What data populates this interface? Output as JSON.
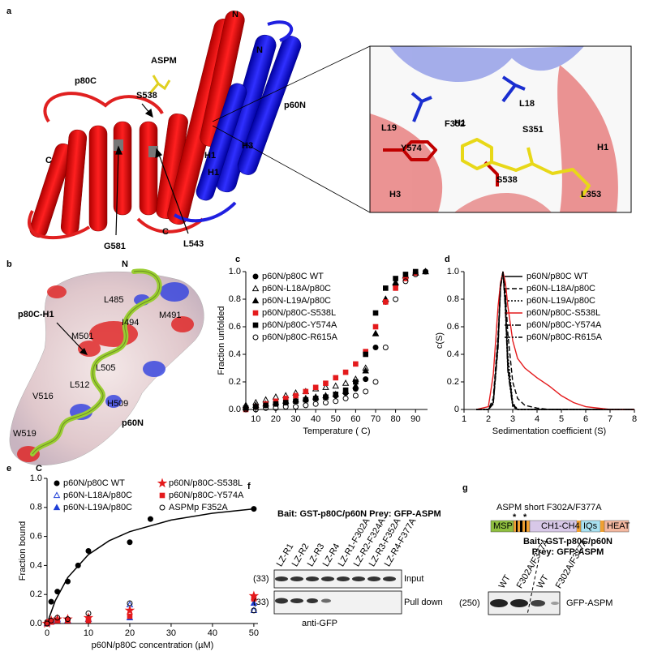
{
  "panel_labels": [
    "a",
    "b",
    "c",
    "d",
    "e",
    "f",
    "g"
  ],
  "panel_a": {
    "labels": [
      "p80C",
      "ASPM",
      "S538",
      "N",
      "N",
      "H1",
      "H1",
      "H3",
      "p60N",
      "C",
      "C",
      "G581",
      "L543"
    ],
    "inset_labels": [
      "L19",
      "H1",
      "L18",
      "F352",
      "S351",
      "Y574",
      "S538",
      "H3",
      "H1",
      "L353"
    ]
  },
  "panel_b": {
    "labels": [
      "p80C-H1",
      "N",
      "L485",
      "M491",
      "I494",
      "M501",
      "L505",
      "L512",
      "V516",
      "H509",
      "W519",
      "p60N",
      "C"
    ]
  },
  "chart_data": [
    {
      "type": "scatter",
      "ylabel": "Fraction unfolded",
      "xlabel": "Temperature ( C)",
      "x": [
        5,
        10,
        15,
        20,
        25,
        30,
        35,
        40,
        45,
        50,
        55,
        60,
        65,
        70,
        75,
        80,
        85,
        90,
        95
      ],
      "xlim": [
        5,
        96
      ],
      "xticks": [
        10,
        20,
        30,
        40,
        50,
        60,
        70,
        80,
        90
      ],
      "ylim": [
        0,
        1
      ],
      "yticks": [
        {
          "value": 0,
          "label": "0.0"
        },
        0.2,
        0.4,
        0.6,
        0.8,
        {
          "value": 1,
          "label": "1.0"
        }
      ],
      "legend": "upper left",
      "series": [
        {
          "name": "p60N/p80C WT",
          "color": "#000000",
          "marker": "circle",
          "values": [
            0.01,
            0.02,
            0.03,
            0.04,
            0.05,
            0.06,
            0.07,
            0.08,
            0.09,
            0.1,
            0.12,
            0.15,
            0.22,
            0.45,
            0.78,
            0.9,
            0.96,
            0.99,
            1.0
          ]
        },
        {
          "name": "p60N-L18A/p80C",
          "color": "#000000",
          "marker": "open-triangle",
          "values": [
            0.03,
            0.05,
            0.07,
            0.09,
            0.1,
            0.12,
            0.13,
            0.15,
            0.16,
            0.17,
            0.19,
            0.22,
            0.3,
            0.55,
            0.8,
            0.92,
            0.97,
            0.99,
            1.0
          ]
        },
        {
          "name": "p60N-L19A/p80C",
          "color": "#000000",
          "marker": "triangle",
          "values": [
            0.02,
            0.03,
            0.04,
            0.05,
            0.06,
            0.07,
            0.08,
            0.09,
            0.1,
            0.11,
            0.13,
            0.17,
            0.28,
            0.55,
            0.8,
            0.92,
            0.97,
            0.99,
            1.0
          ]
        },
        {
          "name": "p60N/p80C-S538L",
          "color": "#e41a1c",
          "marker": "square",
          "values": [
            0.0,
            0.02,
            0.04,
            0.06,
            0.08,
            0.1,
            0.13,
            0.16,
            0.19,
            0.23,
            0.27,
            0.33,
            0.42,
            0.6,
            0.78,
            0.88,
            0.95,
            0.99,
            null
          ]
        },
        {
          "name": "p60N/p80C-Y574A",
          "color": "#000000",
          "marker": "square",
          "values": [
            0.01,
            0.02,
            0.03,
            0.04,
            0.05,
            0.06,
            0.07,
            0.08,
            0.09,
            0.11,
            0.14,
            0.2,
            0.4,
            0.7,
            0.88,
            0.95,
            0.98,
            1.0,
            null
          ]
        },
        {
          "name": "p60N/p80C-R615A",
          "color": "#000000",
          "marker": "open-circle",
          "values": [
            0.0,
            0.0,
            0.01,
            0.01,
            0.02,
            0.02,
            0.03,
            0.04,
            0.05,
            0.06,
            0.08,
            0.1,
            0.13,
            0.2,
            0.45,
            0.8,
            0.93,
            0.98,
            1.0
          ]
        }
      ]
    },
    {
      "type": "line",
      "ylabel": "c(S)",
      "xlabel": "Sedimentation coefficient (S)",
      "x": [
        1.5,
        2.0,
        2.2,
        2.4,
        2.5,
        2.6,
        2.7,
        2.8,
        3.0,
        3.2,
        3.5,
        4.0,
        4.5,
        5.0,
        5.5,
        6.0,
        7.0,
        8.0
      ],
      "xlim": [
        1,
        8
      ],
      "xticks": [
        1,
        2,
        3,
        4,
        5,
        6,
        7,
        8
      ],
      "ylim": [
        0,
        1
      ],
      "yticks": [
        0,
        0.2,
        0.4,
        0.6,
        0.8,
        {
          "value": 1,
          "label": "1.0"
        }
      ],
      "legend": "upper right",
      "series": [
        {
          "name": "p60N/p80C WT",
          "color": "#000000",
          "dash": "none",
          "values": [
            0,
            0,
            0.05,
            0.5,
            0.9,
            1.0,
            0.75,
            0.3,
            0.03,
            0,
            0,
            0,
            0,
            0,
            0,
            0,
            0,
            0
          ]
        },
        {
          "name": "p60N-L18A/p80C",
          "color": "#000000",
          "dash": "6 3",
          "values": [
            0,
            0,
            0.08,
            0.55,
            0.9,
            1.0,
            0.85,
            0.55,
            0.2,
            0.08,
            0.03,
            0.01,
            0,
            0,
            0,
            0,
            0,
            0
          ]
        },
        {
          "name": "p60N-L19A/p80C",
          "color": "#000000",
          "dash": "2 2",
          "values": [
            0,
            0,
            0.05,
            0.5,
            0.88,
            1.0,
            0.8,
            0.4,
            0.05,
            0,
            0,
            0,
            0,
            0,
            0,
            0,
            0,
            0
          ]
        },
        {
          "name": "p60N/p80C-S538L",
          "color": "#e41a1c",
          "dash": "none",
          "values": [
            0,
            0.02,
            0.25,
            0.75,
            0.92,
            1.0,
            0.92,
            0.75,
            0.5,
            0.37,
            0.3,
            0.23,
            0.17,
            0.1,
            0.05,
            0.02,
            0,
            0
          ]
        },
        {
          "name": "p60N/p80C-Y574A",
          "color": "#000000",
          "dash": "7 2 2 2",
          "values": [
            0,
            0,
            0.04,
            0.45,
            0.88,
            1.0,
            0.78,
            0.35,
            0.04,
            0,
            0,
            0,
            0,
            0,
            0,
            0,
            0,
            0
          ]
        },
        {
          "name": "p60N/p80C-R615A",
          "color": "#000000",
          "dash": "7 2 2 2 2 2",
          "values": [
            0,
            0,
            0.04,
            0.48,
            0.9,
            1.0,
            0.72,
            0.28,
            0.02,
            0,
            0,
            0,
            0,
            0,
            0,
            0,
            0,
            0
          ]
        }
      ]
    },
    {
      "type": "scatter",
      "ylabel": "Fraction bound",
      "xlabel": "p60N/p80C concentration (µM)",
      "x": [
        0,
        1,
        2.5,
        5,
        7.5,
        10,
        20,
        25,
        50
      ],
      "xlim": [
        0,
        51
      ],
      "xticks": [
        0,
        10,
        20,
        30,
        40,
        50
      ],
      "ylim": [
        0,
        1
      ],
      "yticks": [
        {
          "value": 0,
          "label": "0.0"
        },
        0.2,
        0.4,
        0.6,
        0.8,
        {
          "value": 1,
          "label": "1.0"
        }
      ],
      "legend": "upper left",
      "legend_columns": 2,
      "fit": {
        "x": [
          0,
          2,
          5,
          10,
          15,
          20,
          30,
          40,
          50
        ],
        "values": [
          0,
          0.158,
          0.317,
          0.475,
          0.57,
          0.633,
          0.713,
          0.76,
          0.79
        ]
      },
      "series": [
        {
          "name": "p60N/p80C WT",
          "color": "#000000",
          "marker": "circle",
          "values": [
            0.01,
            0.15,
            0.22,
            0.29,
            0.4,
            0.5,
            0.56,
            0.72,
            0.79
          ]
        },
        {
          "name": "p60N-L18A/p80C",
          "color": "#1f3fd6",
          "marker": "open-triangle",
          "values": [
            0,
            0.02,
            0.03,
            0.02,
            null,
            0.03,
            0.13,
            null,
            0.09
          ]
        },
        {
          "name": "p60N-L19A/p80C",
          "color": "#1f3fd6",
          "marker": "triangle",
          "values": [
            0,
            0.01,
            0.02,
            0.02,
            null,
            0.03,
            0.04,
            null,
            0.14
          ]
        },
        {
          "name": "p60N/p80C-S538L",
          "color": "#e41a1c",
          "marker": "star",
          "values": [
            0,
            0.02,
            0.03,
            0.03,
            null,
            0.04,
            0.09,
            null,
            0.19
          ]
        },
        {
          "name": "p60N/p80C-Y574A",
          "color": "#e41a1c",
          "marker": "square",
          "values": [
            0,
            0.01,
            0.02,
            0.02,
            null,
            0.02,
            0.05,
            null,
            0.17
          ]
        },
        {
          "name": "ASPMp F352A",
          "color": "#000000",
          "marker": "open-circle",
          "values": [
            0,
            0.02,
            0.04,
            0.03,
            null,
            0.07,
            0.14,
            null,
            0.09
          ]
        }
      ]
    }
  ],
  "panel_f": {
    "title": "Bait: GST-p80C/p60N Prey: GFP-ASPM",
    "lanes": [
      "LZ-R1",
      "LZ-R2",
      "LZ-R3",
      "LZ-R4",
      "LZ-R1-F302A",
      "LZ-R2-F324A",
      "LZ-R3-F352A",
      "LZ-R4-F377A"
    ],
    "rows": [
      "Input",
      "Pull down"
    ],
    "markers": [
      "(33)",
      "(33)"
    ],
    "antibody": "anti-GFP"
  },
  "panel_g": {
    "title": "ASPM short F302A/F377A",
    "domains": [
      "MSP",
      "CH1-CH4",
      "IQs",
      "HEAT"
    ],
    "asterisks": [
      "*",
      "*"
    ],
    "bait": "Bait: GST-p80C/p60N",
    "prey": "Prey: GFP-ASPM",
    "lanes": [
      "WT",
      "F302A/F377A",
      "WT",
      "F302A/F377A"
    ],
    "marker": "(250)",
    "band_label": "GFP-ASPM"
  }
}
